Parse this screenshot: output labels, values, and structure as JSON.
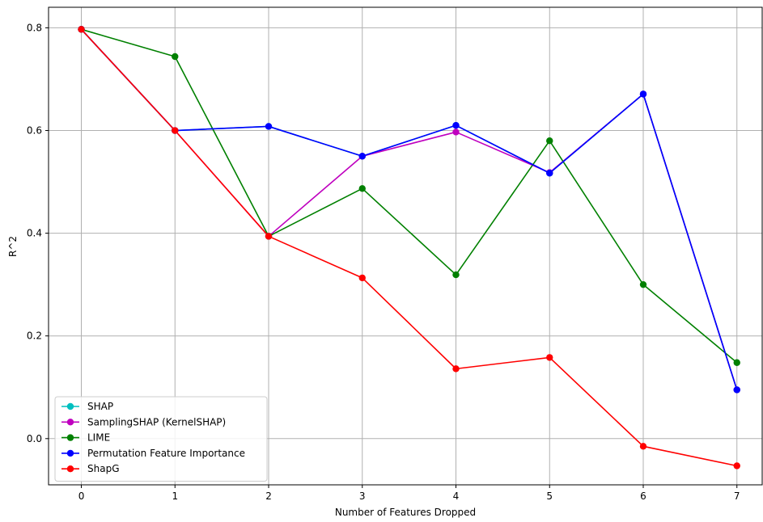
{
  "chart_data": {
    "type": "line",
    "title": "",
    "xlabel": "Number of Features Dropped",
    "ylabel": "R^2",
    "x": [
      0,
      1,
      2,
      3,
      4,
      5,
      6,
      7
    ],
    "x_ticks": [
      "0",
      "1",
      "2",
      "3",
      "4",
      "5",
      "6",
      "7"
    ],
    "y_ticks": [
      "0.0",
      "0.2",
      "0.4",
      "0.6",
      "0.8"
    ],
    "xlim": [
      -0.35,
      7.27
    ],
    "ylim": [
      -0.09,
      0.84
    ],
    "grid": true,
    "legend_position": "lower-left",
    "series": [
      {
        "name": "SHAP",
        "color": "#00bfbf",
        "values": [
          0.797,
          0.6,
          0.608,
          0.55,
          0.61,
          0.517,
          0.671,
          0.095
        ]
      },
      {
        "name": "SamplingSHAP (KernelSHAP)",
        "color": "#bf00bf",
        "values": [
          0.797,
          0.6,
          0.394,
          0.55,
          0.597,
          0.518,
          0.671,
          0.095
        ]
      },
      {
        "name": "LIME",
        "color": "#008000",
        "values": [
          0.797,
          0.744,
          0.394,
          0.487,
          0.319,
          0.58,
          0.3,
          0.148
        ]
      },
      {
        "name": "Permutation Feature Importance",
        "color": "#0000ff",
        "values": [
          0.797,
          0.6,
          0.608,
          0.55,
          0.61,
          0.517,
          0.671,
          0.095
        ]
      },
      {
        "name": "ShapG",
        "color": "#ff0000",
        "values": [
          0.797,
          0.6,
          0.394,
          0.313,
          0.136,
          0.158,
          -0.015,
          -0.053
        ]
      }
    ]
  }
}
